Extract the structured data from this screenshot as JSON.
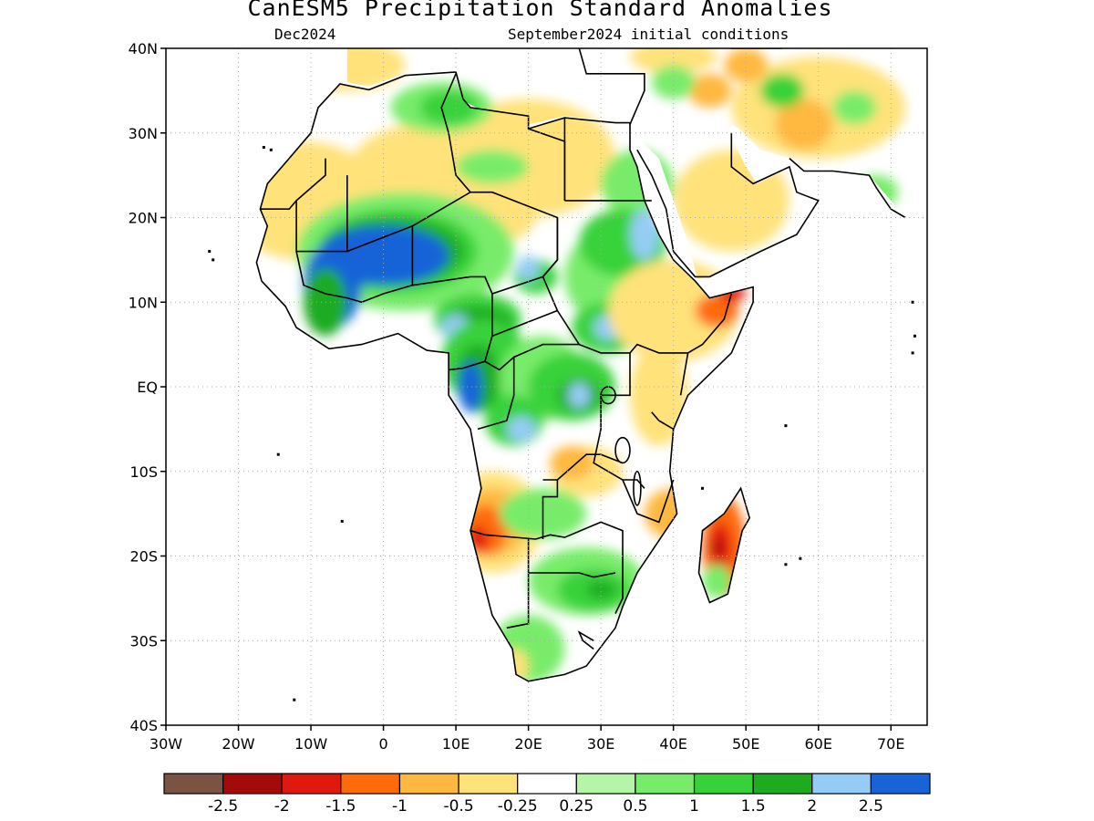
{
  "title": "CanESM5 Precipitation Standard Anomalies",
  "subtitle_left": "Dec2024",
  "subtitle_right": "September2024 initial conditions",
  "map": {
    "lon_range": [
      -30,
      75
    ],
    "lat_range": [
      -40,
      40
    ],
    "lat_ticks": [
      {
        "value": 40,
        "label": "40N"
      },
      {
        "value": 30,
        "label": "30N"
      },
      {
        "value": 20,
        "label": "20N"
      },
      {
        "value": 10,
        "label": "10N"
      },
      {
        "value": 0,
        "label": "EQ"
      },
      {
        "value": -10,
        "label": "10S"
      },
      {
        "value": -20,
        "label": "20S"
      },
      {
        "value": -30,
        "label": "30S"
      },
      {
        "value": -40,
        "label": "40S"
      }
    ],
    "lon_ticks": [
      {
        "value": -30,
        "label": "30W"
      },
      {
        "value": -20,
        "label": "20W"
      },
      {
        "value": -10,
        "label": "10W"
      },
      {
        "value": 0,
        "label": "0"
      },
      {
        "value": 10,
        "label": "10E"
      },
      {
        "value": 20,
        "label": "20E"
      },
      {
        "value": 30,
        "label": "30E"
      },
      {
        "value": 40,
        "label": "40E"
      },
      {
        "value": 50,
        "label": "50E"
      },
      {
        "value": 60,
        "label": "60E"
      },
      {
        "value": 70,
        "label": "70E"
      }
    ],
    "grid": "dotted"
  },
  "legend": {
    "colors": [
      "#7b5343",
      "#a50a0a",
      "#e0190f",
      "#ff6a0a",
      "#ffb83f",
      "#ffe27a",
      "#ffffff",
      "#b5f5a8",
      "#78ec6a",
      "#37d23a",
      "#1fab20",
      "#95ccf5",
      "#1764d8"
    ],
    "labels": [
      "-2.5",
      "-2",
      "-1.5",
      "-1",
      "-0.5",
      "-0.25",
      "0.25",
      "0.5",
      "1",
      "1.5",
      "2",
      "2.5"
    ]
  },
  "chart_data": {
    "type": "heatmap",
    "variable": "precipitation standard anomaly",
    "period": "Dec2024",
    "initial_conditions": "September2024",
    "regions": [
      {
        "lon": 2,
        "lat": 16,
        "value": 2.5
      },
      {
        "lon": 13,
        "lat": 1,
        "value": 2.5
      },
      {
        "lon": 36,
        "lat": 18,
        "value": 2
      },
      {
        "lon": 31,
        "lat": 7,
        "value": 2
      },
      {
        "lon": 27,
        "lat": -1,
        "value": 2
      },
      {
        "lon": 15,
        "lat": -16,
        "value": -1.5
      },
      {
        "lon": 47,
        "lat": -19,
        "value": -2
      },
      {
        "lon": 47,
        "lat": 9,
        "value": -1.5
      },
      {
        "lon": 45,
        "lat": 36,
        "value": -1
      },
      {
        "lon": 8,
        "lat": 33,
        "value": 1
      },
      {
        "lon": 29,
        "lat": -24,
        "value": 1
      },
      {
        "lon": 40,
        "lat": -16,
        "value": -1
      }
    ]
  }
}
